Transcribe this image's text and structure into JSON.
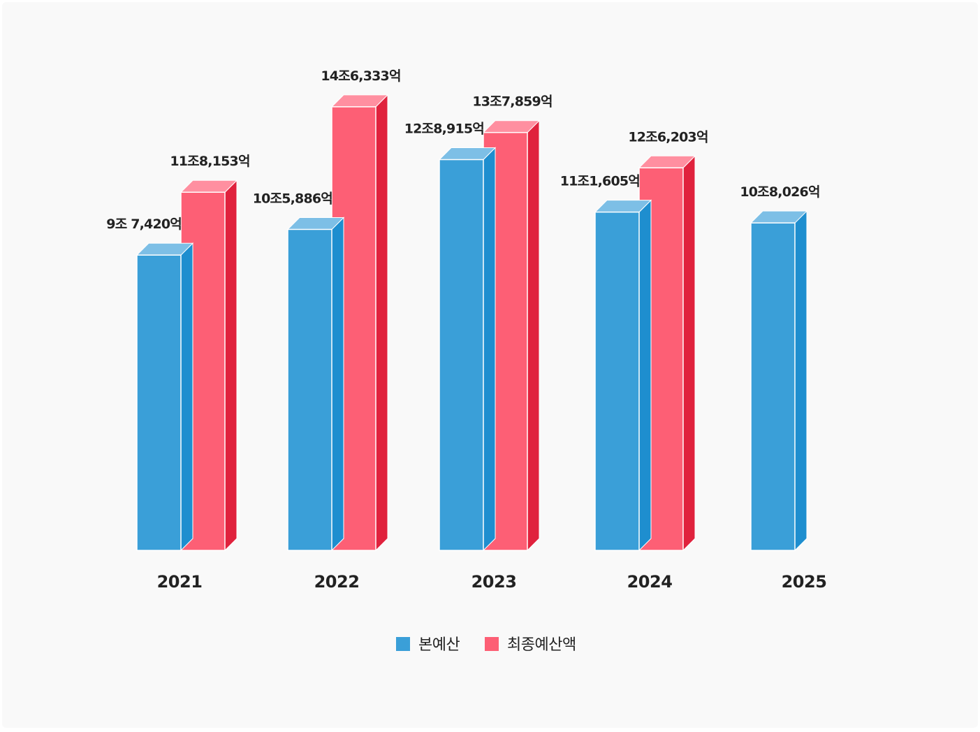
{
  "chart_data": {
    "type": "bar",
    "title": "",
    "xlabel": "",
    "ylabel": "",
    "ylim": [
      0,
      150000
    ],
    "grid": false,
    "legend_position": "bottom-center",
    "categories": [
      "2021",
      "2022",
      "2023",
      "2024",
      "2025"
    ],
    "series": [
      {
        "name": "본예산",
        "color": "#3a9fd8",
        "values": [
          97420,
          105886,
          128915,
          111605,
          108026
        ],
        "labels": [
          "9조 7,420억",
          "10조5,886억",
          "12조8,915억",
          "11조1,605억",
          "10조8,026억"
        ]
      },
      {
        "name": "최종예산액",
        "color": "#fd5f75",
        "values": [
          118153,
          146333,
          137859,
          126203,
          null
        ],
        "labels": [
          "11조8,153억",
          "14조6,333억",
          "13조7,859억",
          "12조6,203억",
          null
        ]
      }
    ]
  }
}
